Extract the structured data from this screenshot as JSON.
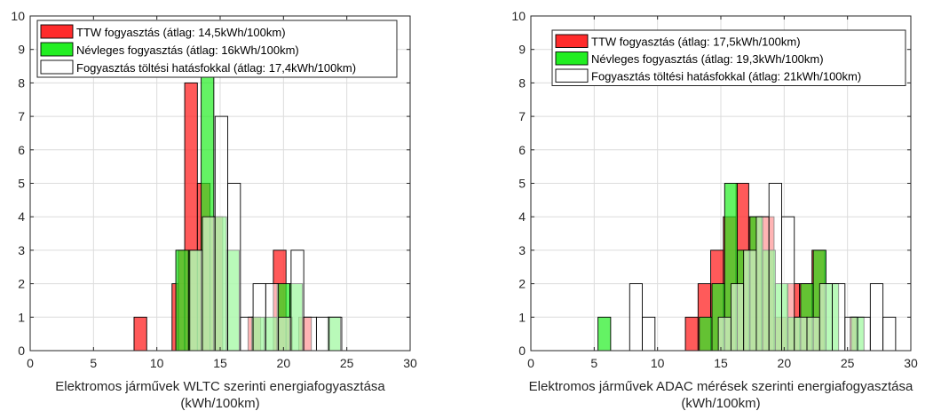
{
  "colors": {
    "ttw": "#ff2b2b",
    "nominal": "#22ee22",
    "charging": "#ffffff",
    "ttw_light": "#ffb0b0",
    "nominal_light": "#a8f5a8",
    "overlap_rg": "#2e9a14",
    "overlap_gw": "#c8ecc0",
    "axis": "#262626",
    "grid": "#dcdcdc"
  },
  "chart_data": [
    {
      "type": "bar",
      "subtype": "histogram",
      "title": "",
      "xlabel": "Elektromos járművek WLTC szerinti energiafogyasztása (kWh/100km)",
      "xlabel_lines": [
        "Elektromos járművek WLTC szerinti energiafogyasztása",
        "(kWh/100km)"
      ],
      "ylabel": "",
      "xlim": [
        0,
        30
      ],
      "ylim": [
        0,
        10
      ],
      "xticks": [
        0,
        5,
        10,
        15,
        20,
        25,
        30
      ],
      "yticks": [
        0,
        1,
        2,
        3,
        4,
        5,
        6,
        7,
        8,
        9,
        10
      ],
      "grid": true,
      "legend_position": "top-left",
      "series": [
        {
          "name": "TTW fogyasztás (átlag: 14,5kWh/100km)",
          "color": "#ff2b2b",
          "bins": [
            {
              "x0": 8.2,
              "x1": 9.2,
              "count": 1
            },
            {
              "x0": 11.2,
              "x1": 11.7,
              "count": 2
            },
            {
              "x0": 11.7,
              "x1": 12.2,
              "count": 3
            },
            {
              "x0": 12.2,
              "x1": 13.2,
              "count": 8
            },
            {
              "x0": 13.2,
              "x1": 14.2,
              "count": 5
            },
            {
              "x0": 14.2,
              "x1": 15.2,
              "count": 4
            },
            {
              "x0": 17.2,
              "x1": 18.2,
              "count": 1
            },
            {
              "x0": 19.2,
              "x1": 20.2,
              "count": 3
            },
            {
              "x0": 20.2,
              "x1": 20.7,
              "count": 1
            },
            {
              "x0": 21.2,
              "x1": 22.2,
              "count": 1
            }
          ]
        },
        {
          "name": "Névleges fogyasztás (átlag: 16kWh/100km)",
          "color": "#22ee22",
          "bins": [
            {
              "x0": 11.5,
              "x1": 12.5,
              "count": 3
            },
            {
              "x0": 12.5,
              "x1": 13.5,
              "count": 3
            },
            {
              "x0": 13.5,
              "x1": 14.5,
              "count": 8.4
            },
            {
              "x0": 14.5,
              "x1": 15.5,
              "count": 4
            },
            {
              "x0": 15.5,
              "x1": 16.5,
              "count": 3
            },
            {
              "x0": 17.5,
              "x1": 18.5,
              "count": 1
            },
            {
              "x0": 18.5,
              "x1": 19.5,
              "count": 1
            },
            {
              "x0": 19.5,
              "x1": 20.5,
              "count": 2
            },
            {
              "x0": 20.5,
              "x1": 21.5,
              "count": 2
            },
            {
              "x0": 23.5,
              "x1": 24.5,
              "count": 1
            }
          ]
        },
        {
          "name": "Fogyasztás töltési hatásfokkal (átlag: 17,4kWh/100km)",
          "color": "#ffffff",
          "bins": [
            {
              "x0": 12.6,
              "x1": 13.6,
              "count": 3
            },
            {
              "x0": 13.6,
              "x1": 14.6,
              "count": 4
            },
            {
              "x0": 14.6,
              "x1": 15.6,
              "count": 7
            },
            {
              "x0": 15.6,
              "x1": 16.6,
              "count": 5
            },
            {
              "x0": 16.6,
              "x1": 17.6,
              "count": 1
            },
            {
              "x0": 17.6,
              "x1": 18.6,
              "count": 2
            },
            {
              "x0": 18.6,
              "x1": 19.6,
              "count": 2
            },
            {
              "x0": 19.6,
              "x1": 20.6,
              "count": 1
            },
            {
              "x0": 20.6,
              "x1": 21.6,
              "count": 3
            },
            {
              "x0": 21.6,
              "x1": 22.6,
              "count": 1
            },
            {
              "x0": 22.6,
              "x1": 23.6,
              "count": 1
            },
            {
              "x0": 23.6,
              "x1": 24.6,
              "count": 1
            }
          ]
        }
      ]
    },
    {
      "type": "bar",
      "subtype": "histogram",
      "title": "",
      "xlabel": "Elektromos járművek ADAC mérések szerinti energiafogyasztása (kWh/100km)",
      "xlabel_lines": [
        "Elektromos járművek ADAC mérések szerinti energiafogyasztása",
        "(kWh/100km)"
      ],
      "ylabel": "",
      "xlim": [
        0,
        30
      ],
      "ylim": [
        0,
        10
      ],
      "xticks": [
        0,
        5,
        10,
        15,
        20,
        25,
        30
      ],
      "yticks": [
        0,
        1,
        2,
        3,
        4,
        5,
        6,
        7,
        8,
        9,
        10
      ],
      "grid": true,
      "legend_position": "top-right",
      "series": [
        {
          "name": "TTW fogyasztás (átlag: 17,5kWh/100km)",
          "color": "#ff2b2b",
          "bins": [
            {
              "x0": 12.2,
              "x1": 13.2,
              "count": 1
            },
            {
              "x0": 13.2,
              "x1": 14.2,
              "count": 2
            },
            {
              "x0": 14.2,
              "x1": 15.2,
              "count": 3
            },
            {
              "x0": 15.2,
              "x1": 16.2,
              "count": 4
            },
            {
              "x0": 16.2,
              "x1": 17.2,
              "count": 5
            },
            {
              "x0": 17.2,
              "x1": 18.2,
              "count": 4
            },
            {
              "x0": 18.2,
              "x1": 19.2,
              "count": 4
            },
            {
              "x0": 19.2,
              "x1": 20.2,
              "count": 1
            },
            {
              "x0": 20.2,
              "x1": 21.2,
              "count": 2
            },
            {
              "x0": 21.2,
              "x1": 22.2,
              "count": 2
            },
            {
              "x0": 22.2,
              "x1": 23.2,
              "count": 3
            },
            {
              "x0": 25.2,
              "x1": 25.7,
              "count": 1
            }
          ]
        },
        {
          "name": "Névleges fogyasztás (átlag: 19,3kWh/100km)",
          "color": "#22ee22",
          "bins": [
            {
              "x0": 5.3,
              "x1": 6.3,
              "count": 1
            },
            {
              "x0": 13.3,
              "x1": 14.3,
              "count": 1
            },
            {
              "x0": 14.3,
              "x1": 15.3,
              "count": 2
            },
            {
              "x0": 15.3,
              "x1": 16.3,
              "count": 5
            },
            {
              "x0": 16.3,
              "x1": 17.3,
              "count": 3
            },
            {
              "x0": 17.3,
              "x1": 18.3,
              "count": 4
            },
            {
              "x0": 18.3,
              "x1": 19.3,
              "count": 3
            },
            {
              "x0": 19.3,
              "x1": 20.3,
              "count": 2
            },
            {
              "x0": 20.3,
              "x1": 21.3,
              "count": 1
            },
            {
              "x0": 21.3,
              "x1": 22.3,
              "count": 2
            },
            {
              "x0": 22.3,
              "x1": 23.3,
              "count": 3
            },
            {
              "x0": 23.3,
              "x1": 24.3,
              "count": 2
            },
            {
              "x0": 25.3,
              "x1": 26.3,
              "count": 1
            }
          ]
        },
        {
          "name": "Fogyasztás töltési hatásfokkal (átlag: 21kWh/100km)",
          "color": "#ffffff",
          "bins": [
            {
              "x0": 7.8,
              "x1": 8.8,
              "count": 2
            },
            {
              "x0": 8.8,
              "x1": 9.8,
              "count": 1
            },
            {
              "x0": 14.8,
              "x1": 15.8,
              "count": 1
            },
            {
              "x0": 15.8,
              "x1": 16.8,
              "count": 2
            },
            {
              "x0": 16.8,
              "x1": 17.8,
              "count": 3
            },
            {
              "x0": 17.8,
              "x1": 18.8,
              "count": 4
            },
            {
              "x0": 18.8,
              "x1": 19.8,
              "count": 5
            },
            {
              "x0": 19.8,
              "x1": 20.8,
              "count": 4
            },
            {
              "x0": 20.8,
              "x1": 21.8,
              "count": 1
            },
            {
              "x0": 21.8,
              "x1": 22.8,
              "count": 1
            },
            {
              "x0": 22.8,
              "x1": 23.8,
              "count": 2
            },
            {
              "x0": 23.8,
              "x1": 24.8,
              "count": 2
            },
            {
              "x0": 24.8,
              "x1": 25.8,
              "count": 1
            },
            {
              "x0": 25.8,
              "x1": 26.8,
              "count": 1
            },
            {
              "x0": 26.8,
              "x1": 27.8,
              "count": 2
            },
            {
              "x0": 27.8,
              "x1": 28.8,
              "count": 1
            }
          ]
        }
      ]
    }
  ]
}
